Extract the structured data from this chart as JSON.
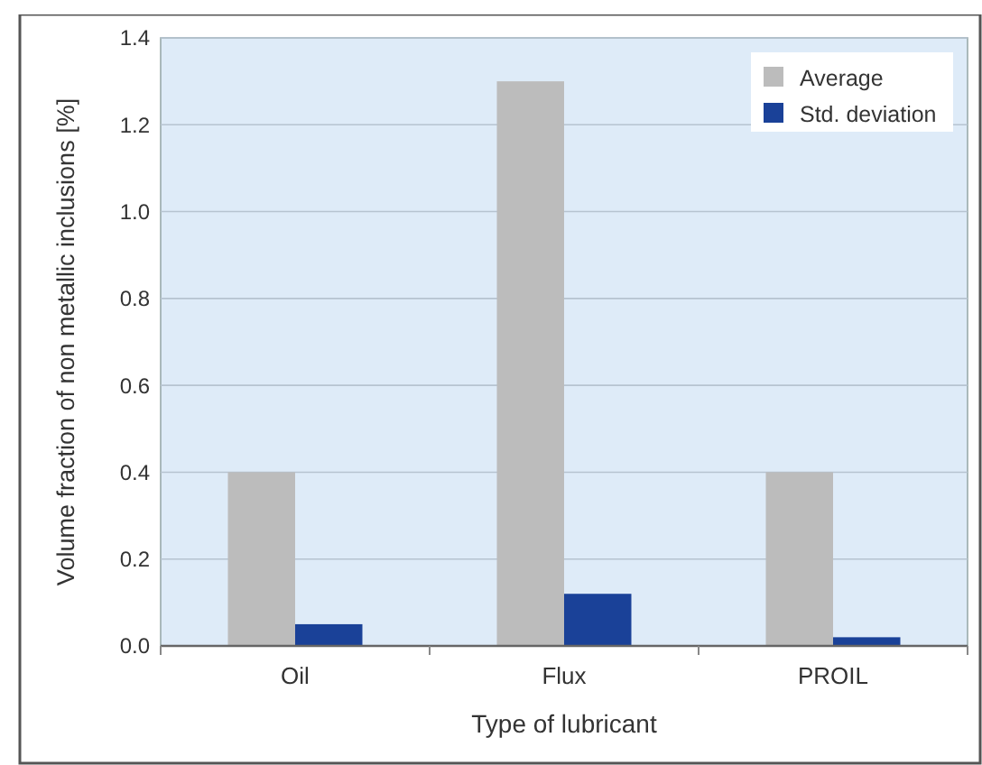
{
  "chart_data": {
    "type": "bar",
    "xlabel": "Type of lubricant",
    "ylabel": "Volume fraction of non metallic inclusions [%]",
    "categories": [
      "Oil",
      "Flux",
      "PROIL"
    ],
    "series": [
      {
        "name": "Average",
        "color": "#bcbcbc",
        "values": [
          0.4,
          1.3,
          0.4
        ]
      },
      {
        "name": "Std. deviation",
        "color": "#1a4198",
        "values": [
          0.05,
          0.12,
          0.02
        ]
      }
    ],
    "ylim": [
      0,
      1.4
    ],
    "yticks": [
      {
        "value": 0,
        "label": "0.0"
      },
      0.2,
      0.4,
      0.6,
      0.8,
      {
        "value": 1,
        "label": "1.0"
      },
      1.2,
      1.4
    ],
    "grid": "y",
    "legend": "top right"
  }
}
